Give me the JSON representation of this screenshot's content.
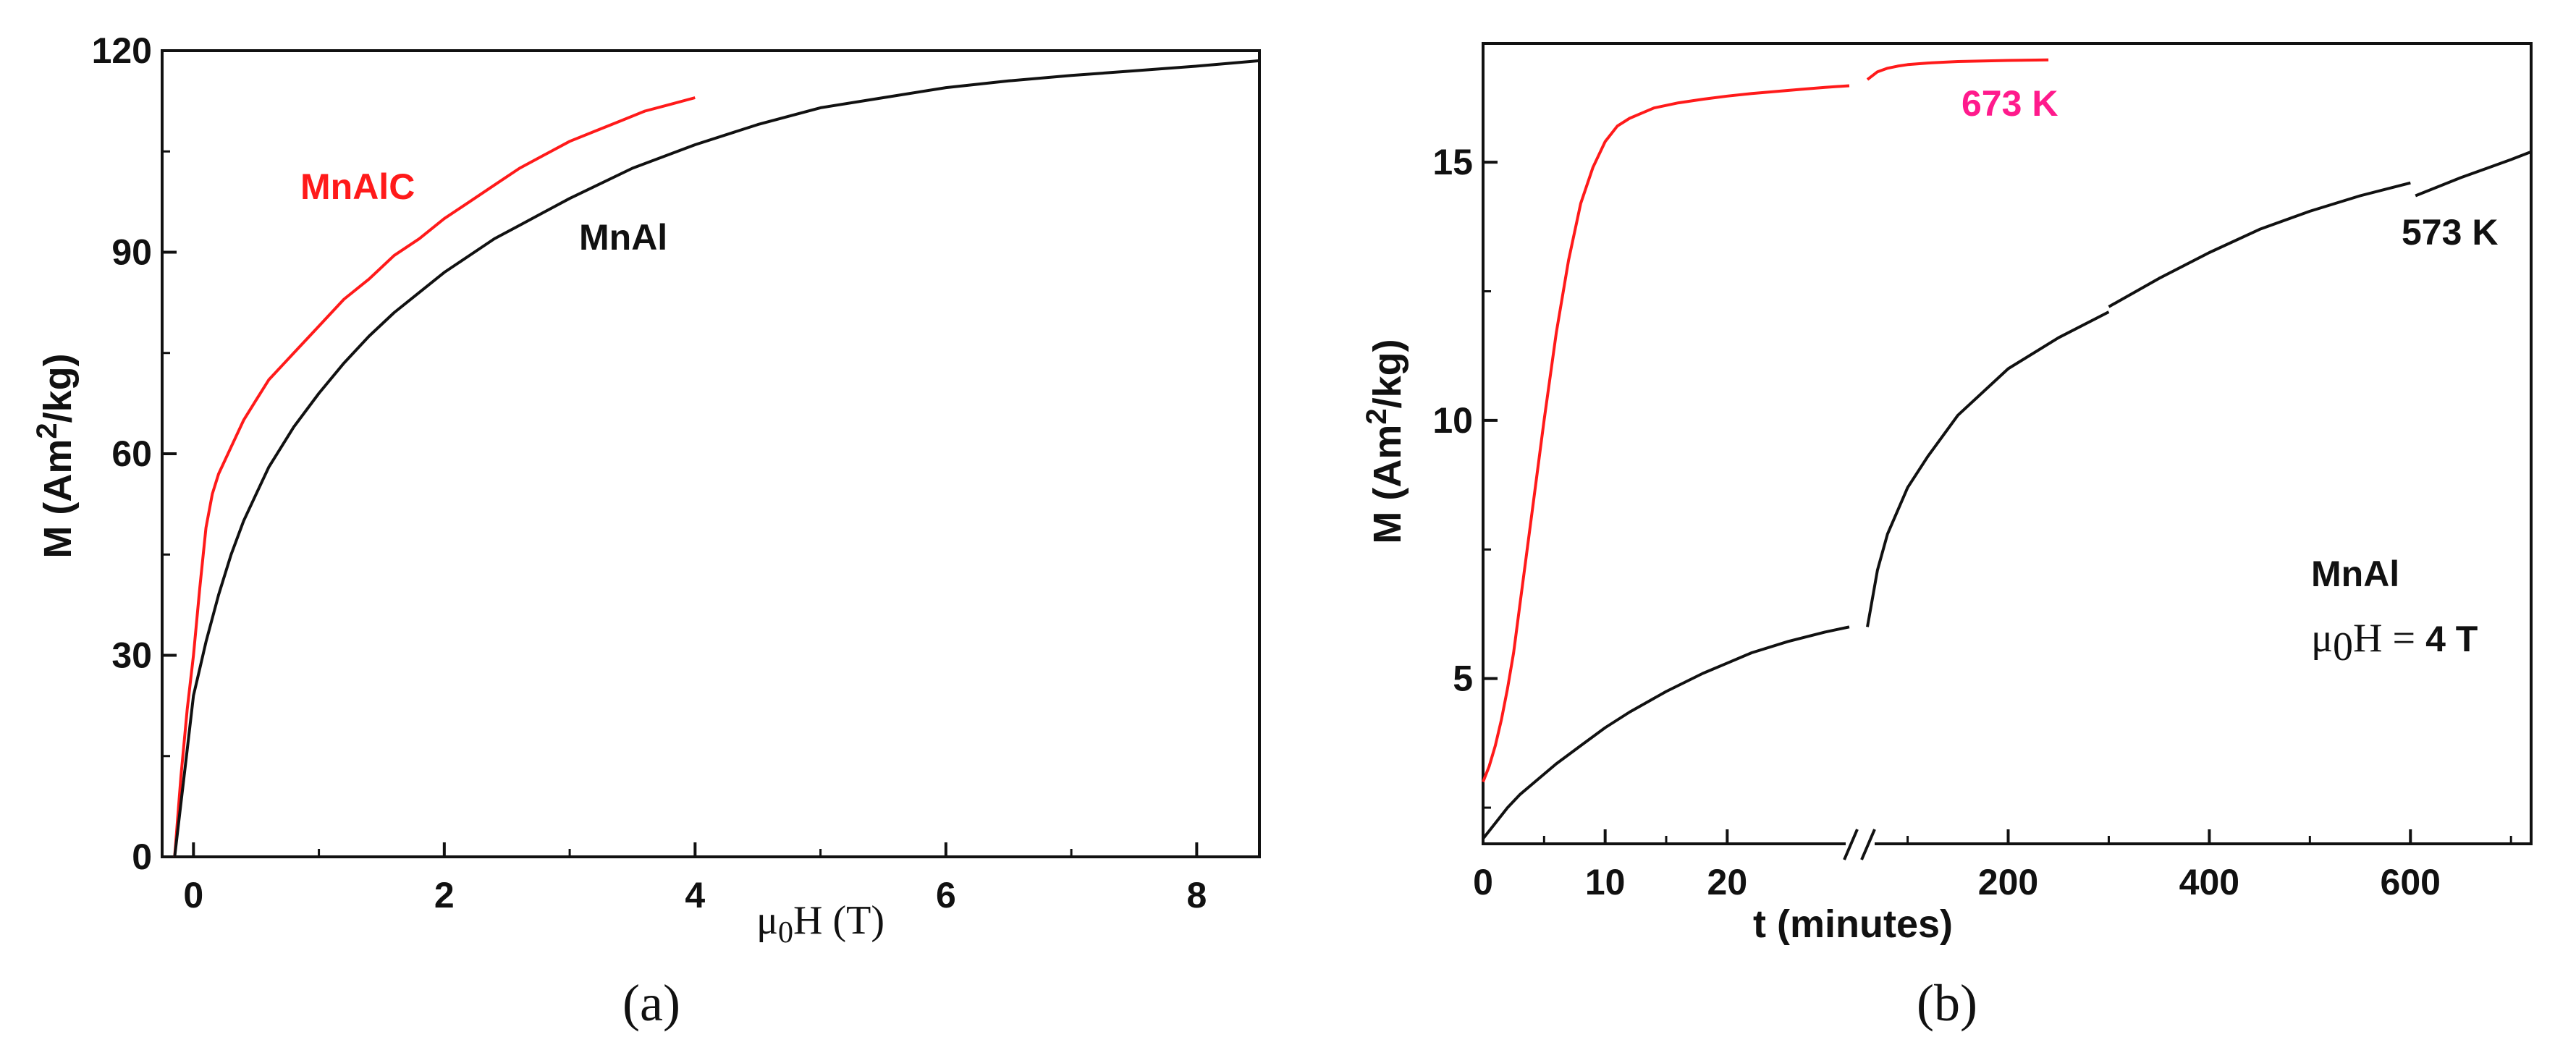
{
  "colors": {
    "mnalc": "#ff1a1a",
    "mnal": "#111111",
    "k673": "#ff1a8c",
    "k573": "#111111"
  },
  "chart_data": [
    {
      "panel": "(a)",
      "type": "line",
      "xlabel_prefix": "μ",
      "xlabel_sub": "0",
      "xlabel_suffix": "H (T)",
      "ylabel_prefix": "M (Am",
      "ylabel_sup": "2",
      "ylabel_suffix": "/kg)",
      "xlim": [
        -0.25,
        8.5
      ],
      "ylim": [
        0,
        120
      ],
      "xticks": [
        0,
        2,
        4,
        6,
        8
      ],
      "yticks": [
        0,
        30,
        60,
        90,
        120
      ],
      "series": [
        {
          "name": "MnAlC",
          "color": "#ff1a1a",
          "x": [
            -0.15,
            -0.1,
            -0.05,
            0,
            0.05,
            0.1,
            0.15,
            0.2,
            0.3,
            0.4,
            0.5,
            0.6,
            0.7,
            0.8,
            1.0,
            1.2,
            1.4,
            1.6,
            1.8,
            2.0,
            2.2,
            2.4,
            2.6,
            2.8,
            3.0,
            3.2,
            3.4,
            3.6,
            3.8,
            4.0
          ],
          "y": [
            0,
            12,
            22,
            30,
            40,
            49,
            54,
            57,
            61,
            65,
            68,
            71,
            73,
            75,
            79,
            83,
            86,
            89.5,
            92,
            95,
            97.5,
            100,
            102.5,
            104.5,
            106.5,
            108,
            109.5,
            111,
            112,
            113
          ]
        },
        {
          "name": "MnAl",
          "color": "#111111",
          "x": [
            -0.15,
            -0.1,
            -0.05,
            0,
            0.05,
            0.1,
            0.2,
            0.3,
            0.4,
            0.5,
            0.6,
            0.8,
            1.0,
            1.2,
            1.4,
            1.6,
            1.8,
            2.0,
            2.2,
            2.4,
            2.6,
            2.8,
            3.0,
            3.5,
            4.0,
            4.5,
            5.0,
            5.5,
            6.0,
            6.5,
            7.0,
            7.5,
            8.0,
            8.5
          ],
          "y": [
            0,
            8,
            16,
            24,
            28,
            32,
            39,
            45,
            50,
            54,
            58,
            64,
            69,
            73.5,
            77.5,
            81,
            84,
            87,
            89.5,
            92,
            94,
            96,
            98,
            102.5,
            106,
            109,
            111.5,
            113,
            114.5,
            115.5,
            116.3,
            117,
            117.7,
            118.5
          ]
        }
      ],
      "labels": {
        "mnalc": "MnAlC",
        "mnal": "MnAl"
      }
    },
    {
      "panel": "(b)",
      "type": "line",
      "xlabel": "t (minutes)",
      "ylabel_prefix": "M (Am",
      "ylabel_sup": "2",
      "ylabel_suffix": "/kg)",
      "ylim": [
        1.8,
        17.3
      ],
      "yticks": [
        5,
        10,
        15
      ],
      "x_segment_1": {
        "range": [
          0,
          30
        ],
        "ticks": [
          0,
          10,
          20
        ]
      },
      "x_segment_2": {
        "range": [
          60,
          720
        ],
        "ticks": [
          200,
          400,
          600
        ]
      },
      "axis_break": "between 30 and 60 minutes",
      "series": [
        {
          "name": "673 K",
          "color": "#ff1a1a",
          "segment_1": {
            "x": [
              0,
              0.5,
              1,
              1.5,
              2,
              2.5,
              3,
              4,
              5,
              6,
              7,
              8,
              9,
              10,
              11,
              12,
              13,
              14,
              16,
              18,
              20,
              22,
              24,
              26,
              28,
              30
            ],
            "y": [
              3.0,
              3.3,
              3.7,
              4.2,
              4.8,
              5.5,
              6.4,
              8.2,
              10.0,
              11.7,
              13.1,
              14.2,
              14.9,
              15.4,
              15.7,
              15.85,
              15.95,
              16.05,
              16.15,
              16.22,
              16.28,
              16.33,
              16.37,
              16.41,
              16.45,
              16.48
            ]
          },
          "segment_2": {
            "x": [
              60,
              70,
              80,
              90,
              100,
              120,
              150,
              200,
              240
            ],
            "y": [
              16.6,
              16.75,
              16.82,
              16.86,
              16.89,
              16.92,
              16.95,
              16.97,
              16.98
            ]
          }
        },
        {
          "name": "573 K",
          "color": "#111111",
          "segment_1": {
            "x": [
              0,
              1,
              2,
              3,
              4,
              6,
              8,
              10,
              12,
              15,
              18,
              20,
              22,
              25,
              28,
              30
            ],
            "y": [
              1.9,
              2.2,
              2.5,
              2.75,
              2.95,
              3.35,
              3.7,
              4.05,
              4.35,
              4.75,
              5.1,
              5.3,
              5.5,
              5.72,
              5.9,
              6.0
            ]
          },
          "segment_2a": {
            "x": [
              60,
              70,
              80,
              100,
              120,
              150,
              200,
              250,
              300
            ],
            "y": [
              6.0,
              7.1,
              7.8,
              8.7,
              9.3,
              10.1,
              11.0,
              11.6,
              12.1
            ]
          },
          "segment_2b": {
            "x": [
              300,
              350,
              400,
              450,
              500,
              550,
              600
            ],
            "y": [
              12.2,
              12.75,
              13.25,
              13.7,
              14.05,
              14.35,
              14.6
            ]
          },
          "segment_2c": {
            "x": [
              605,
              650,
              700,
              720
            ],
            "y": [
              14.35,
              14.7,
              15.05,
              15.2
            ]
          }
        }
      ],
      "labels": {
        "k673": "673 K",
        "k573": "573 K",
        "sample": "MnAl",
        "field_prefix": "μ",
        "field_sub": "0",
        "field_mid": "H = ",
        "field_value": "4 T"
      }
    }
  ]
}
